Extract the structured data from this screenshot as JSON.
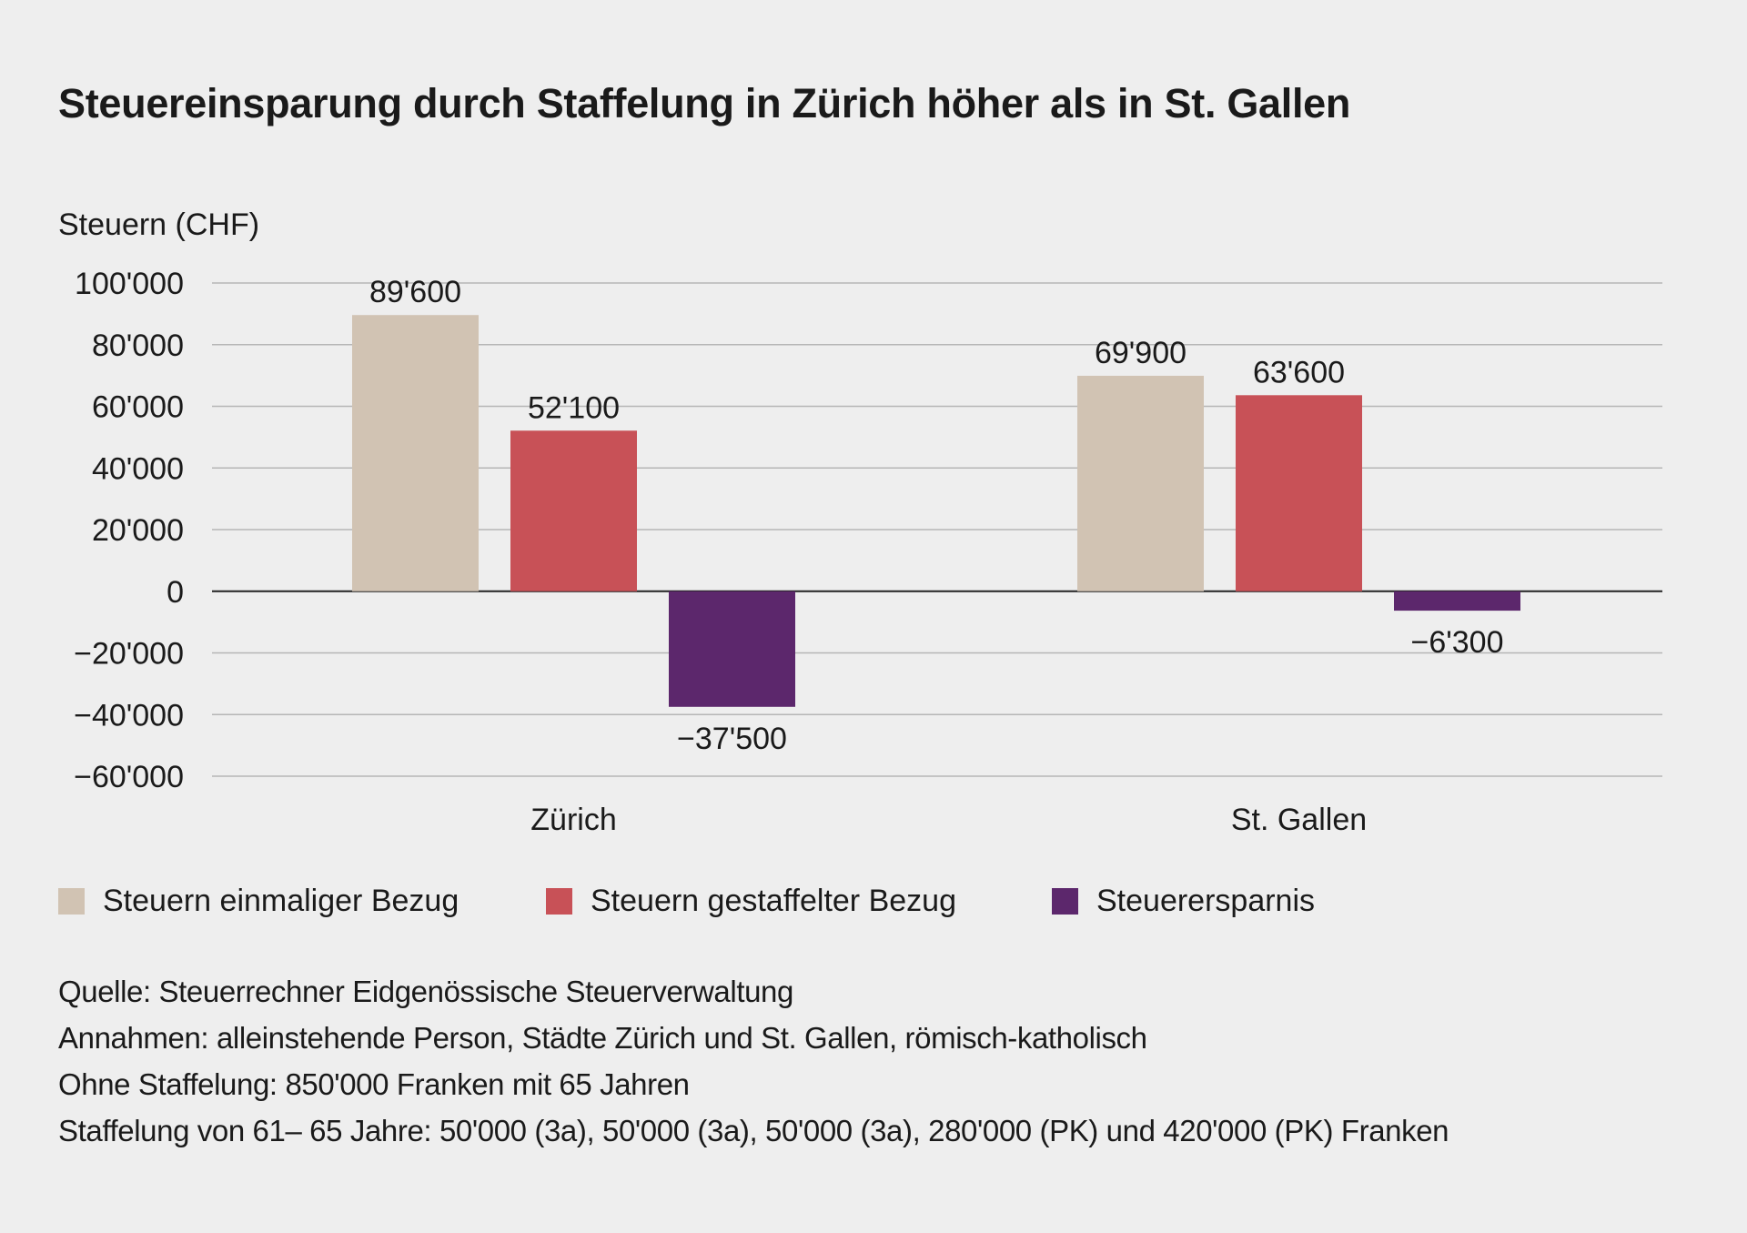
{
  "chart_data": {
    "type": "bar",
    "title": "Steuereinsparung durch Staffelung in Zürich höher als in St. Gallen",
    "ylabel": "Steuern (CHF)",
    "xlabel": "",
    "ylim": [
      -60000,
      100000
    ],
    "yticks": [
      100000,
      80000,
      60000,
      40000,
      20000,
      0,
      -20000,
      -40000,
      -60000
    ],
    "ytick_labels": [
      "100'000",
      "80'000",
      "60'000",
      "40'000",
      "20'000",
      "0",
      "−20'000",
      "−40'000",
      "−60'000"
    ],
    "grid": true,
    "legend_placement": "bottom",
    "categories": [
      "Zürich",
      "St. Gallen"
    ],
    "series": [
      {
        "name": "Steuern einmaliger Bezug",
        "color": "#d1c3b3",
        "values": [
          89600,
          69900
        ],
        "labels": [
          "89'600",
          "69'900"
        ]
      },
      {
        "name": "Steuern gestaffelter Bezug",
        "color": "#c85157",
        "values": [
          52100,
          63600
        ],
        "labels": [
          "52'100",
          "63'600"
        ]
      },
      {
        "name": "Steuerersparnis",
        "color": "#5c276c",
        "values": [
          -37500,
          -6300
        ],
        "labels": [
          "−37'500",
          "−6'300"
        ]
      }
    ]
  },
  "notes": [
    "Quelle: Steuerrechner Eidgenössische Steuerverwaltung",
    "Annahmen: alleinstehende Person, Städte Zürich und St. Gallen, römisch-katholisch",
    "Ohne Staffelung: 850'000 Franken mit 65 Jahren",
    "Staffelung von 61– 65 Jahre: 50'000 (3a), 50'000 (3a), 50'000 (3a), 280'000 (PK) und 420'000 (PK) Franken"
  ]
}
